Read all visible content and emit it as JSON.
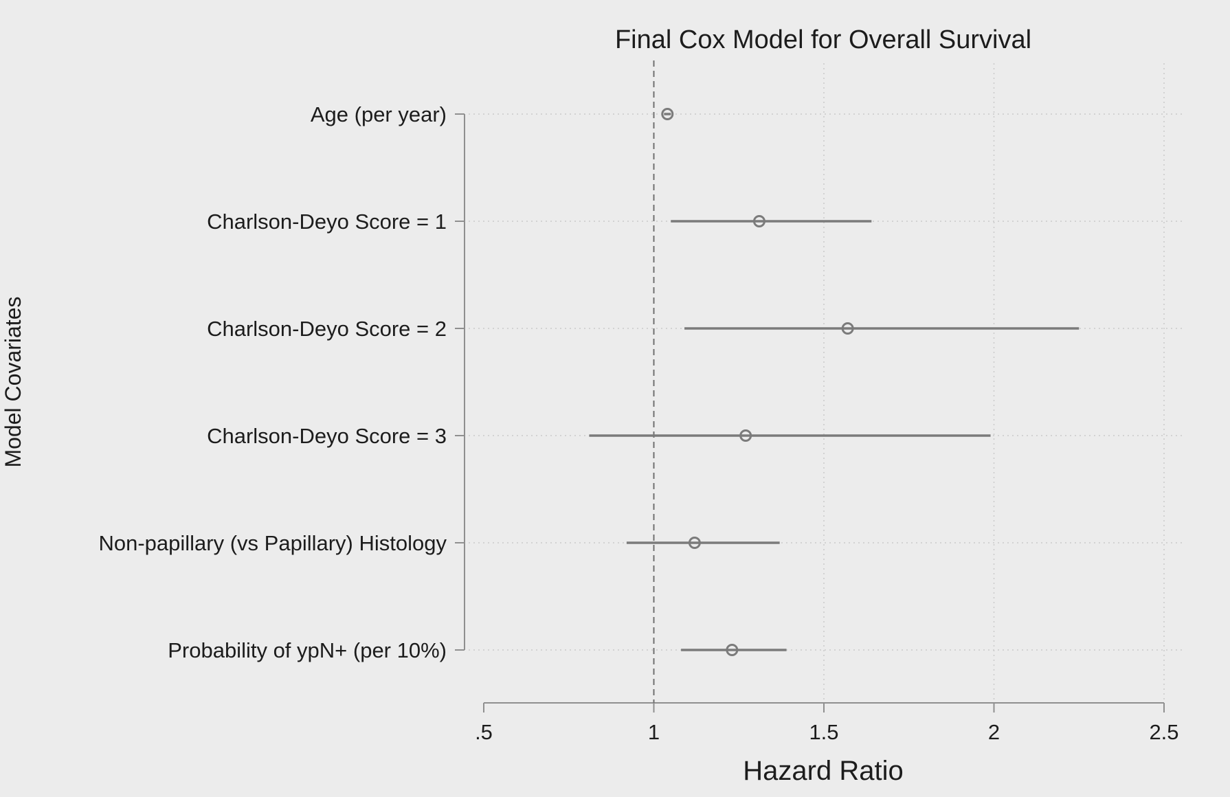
{
  "chart_data": {
    "type": "scatter",
    "subtype": "forest-plot",
    "title": "Final Cox Model for Overall Survival",
    "xlabel": "Hazard Ratio",
    "ylabel": "Model Covariates",
    "xlim": [
      0.5,
      2.5
    ],
    "x_ticks": [
      0.5,
      1,
      1.5,
      2,
      2.5
    ],
    "x_tick_labels": [
      ".5",
      "1",
      "1.5",
      "2",
      "2.5"
    ],
    "reference_line": 1,
    "grid": true,
    "legend": "none",
    "colors": {
      "background": "#ececec",
      "marker": "#7b7b7b",
      "ci_line": "#7b7b7b",
      "axis": "#8f8f8f",
      "grid": "#c9c9c9",
      "reference": "#6f6f6f",
      "text": "#1c1c1c"
    },
    "covariates": [
      {
        "label": "Age (per year)",
        "hr": 1.04,
        "ci": [
          1.03,
          1.05
        ]
      },
      {
        "label": "Charlson-Deyo Score = 1",
        "hr": 1.31,
        "ci": [
          1.05,
          1.64
        ]
      },
      {
        "label": "Charlson-Deyo Score = 2",
        "hr": 1.57,
        "ci": [
          1.09,
          2.25
        ]
      },
      {
        "label": "Charlson-Deyo Score = 3",
        "hr": 1.27,
        "ci": [
          0.81,
          1.99
        ]
      },
      {
        "label": "Non-papillary (vs Papillary) Histology",
        "hr": 1.12,
        "ci": [
          0.92,
          1.37
        ]
      },
      {
        "label": "Probability of ypN+ (per 10%)",
        "hr": 1.23,
        "ci": [
          1.08,
          1.39
        ]
      }
    ]
  }
}
